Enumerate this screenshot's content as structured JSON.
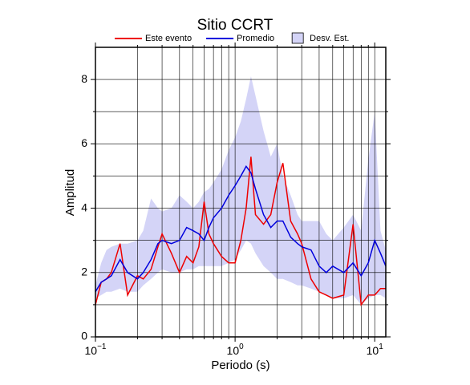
{
  "chart_data": {
    "type": "line",
    "title": "Sitio CCRT",
    "x_label": "Periodo (s)",
    "y_label": "Amplitud",
    "log_x": true,
    "grid": true,
    "x": [
      0.1,
      0.11,
      0.12,
      0.13,
      0.15,
      0.17,
      0.2,
      0.22,
      0.25,
      0.28,
      0.3,
      0.35,
      0.4,
      0.45,
      0.5,
      0.55,
      0.6,
      0.65,
      0.7,
      0.8,
      0.9,
      1.0,
      1.1,
      1.2,
      1.3,
      1.4,
      1.6,
      1.8,
      2.0,
      2.2,
      2.5,
      2.8,
      3.0,
      3.5,
      4,
      4.5,
      5,
      6,
      7,
      8,
      9,
      10,
      11,
      12
    ],
    "band": {
      "name": "Desv. Est.",
      "color": "#d4d4f7",
      "lower": [
        1.2,
        1.3,
        1.4,
        1.4,
        1.5,
        1.4,
        1.4,
        1.6,
        1.8,
        2.0,
        2.1,
        2.0,
        2.0,
        2.1,
        2.1,
        2.2,
        2.2,
        2.2,
        2.2,
        2.2,
        2.3,
        2.4,
        2.7,
        3.0,
        2.9,
        2.6,
        2.2,
        2.0,
        1.8,
        1.8,
        1.7,
        1.6,
        1.6,
        1.5,
        1.4,
        1.3,
        1.2,
        1.2,
        1.3,
        1.0,
        1.2,
        1.3,
        1.3,
        1.2
      ],
      "upper": [
        1.6,
        2.3,
        2.7,
        2.8,
        2.9,
        2.9,
        3.0,
        3.3,
        4.3,
        4.0,
        3.9,
        4.0,
        4.4,
        4.2,
        4.0,
        4.2,
        4.5,
        4.6,
        4.8,
        5.2,
        5.8,
        6.2,
        6.7,
        7.4,
        8.1,
        7.5,
        6.4,
        5.6,
        6.0,
        5.0,
        4.4,
        3.8,
        3.6,
        3.6,
        3.6,
        3.2,
        3.0,
        3.4,
        3.8,
        3.3,
        5.5,
        7.0,
        3.3,
        2.7
      ]
    },
    "series": [
      {
        "name": "Este evento",
        "color": "#ee0000",
        "values": [
          1.0,
          1.7,
          1.8,
          2.0,
          2.9,
          1.3,
          1.9,
          1.8,
          2.1,
          2.8,
          3.2,
          2.6,
          2.0,
          2.5,
          2.3,
          2.8,
          4.2,
          3.2,
          2.9,
          2.5,
          2.3,
          2.3,
          3.0,
          4.0,
          5.6,
          3.8,
          3.5,
          3.8,
          4.8,
          5.4,
          3.6,
          3.2,
          2.9,
          1.8,
          1.4,
          1.3,
          1.2,
          1.3,
          3.5,
          1.0,
          1.3,
          1.3,
          1.5,
          1.5
        ]
      },
      {
        "name": "Promedio",
        "color": "#0000dd",
        "values": [
          1.4,
          1.7,
          1.8,
          1.9,
          2.4,
          2.0,
          1.8,
          2.0,
          2.4,
          2.9,
          3.0,
          2.9,
          3.0,
          3.4,
          3.3,
          3.2,
          3.0,
          3.4,
          3.7,
          4.0,
          4.4,
          4.7,
          5.0,
          5.3,
          5.1,
          4.6,
          3.8,
          3.4,
          3.6,
          3.6,
          3.1,
          2.9,
          2.8,
          2.7,
          2.2,
          2.0,
          2.2,
          2.0,
          2.3,
          1.9,
          2.3,
          3.0,
          2.6,
          2.2
        ]
      }
    ],
    "xlim": [
      0.1,
      12
    ],
    "ylim": [
      0,
      9
    ],
    "xticks": [
      {
        "value": 0.1,
        "label": "10",
        "exponent": "−1"
      },
      {
        "value": 1,
        "label": "10",
        "exponent": "0"
      },
      {
        "value": 10,
        "label": "10",
        "exponent": "1"
      }
    ],
    "minor_xticks": [
      0.2,
      0.3,
      0.4,
      0.5,
      0.6,
      0.7,
      0.8,
      0.9,
      2,
      3,
      4,
      5,
      6,
      7,
      8,
      9
    ],
    "yticks": [
      0,
      2,
      4,
      6,
      8
    ],
    "minor_yticks": [
      1,
      3,
      5,
      7
    ]
  }
}
